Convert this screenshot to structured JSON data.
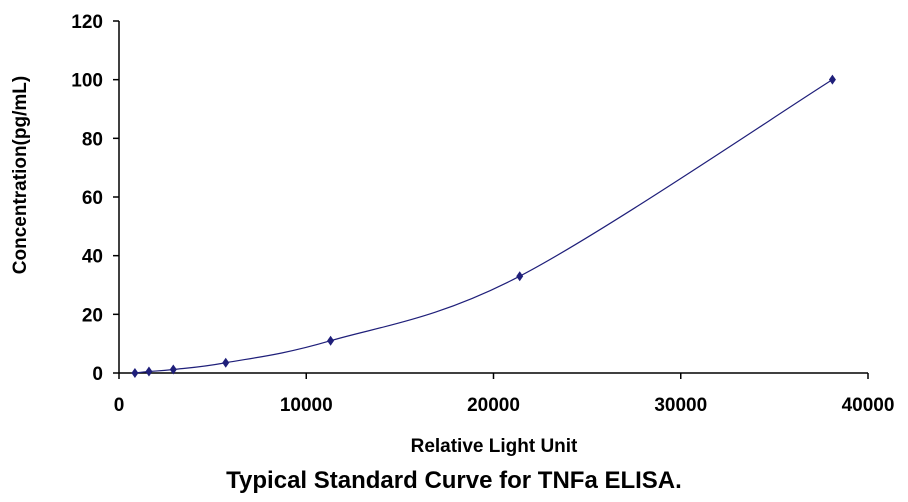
{
  "chart_data": {
    "type": "scatter",
    "caption": "Typical Standard Curve for TNFa ELISA.",
    "xlabel": "Relative Light Unit",
    "ylabel": "Concentration(pg/mL)",
    "xlim": [
      0,
      40000
    ],
    "ylim": [
      0,
      120
    ],
    "xticks": [
      0,
      10000,
      20000,
      30000,
      40000
    ],
    "yticks": [
      0,
      20,
      40,
      60,
      80,
      100,
      120
    ],
    "grid": false,
    "smooth_line": true,
    "series": [
      {
        "points": [
          {
            "x": 850,
            "y": 0
          },
          {
            "x": 1600,
            "y": 0.5
          },
          {
            "x": 2900,
            "y": 1.2
          },
          {
            "x": 5700,
            "y": 3.5
          },
          {
            "x": 11300,
            "y": 11
          },
          {
            "x": 21400,
            "y": 33
          },
          {
            "x": 38100,
            "y": 100
          }
        ]
      }
    ],
    "colors": {
      "line": "#1f1f7a",
      "marker": "#1f1f7a",
      "axis": "#000000"
    }
  }
}
